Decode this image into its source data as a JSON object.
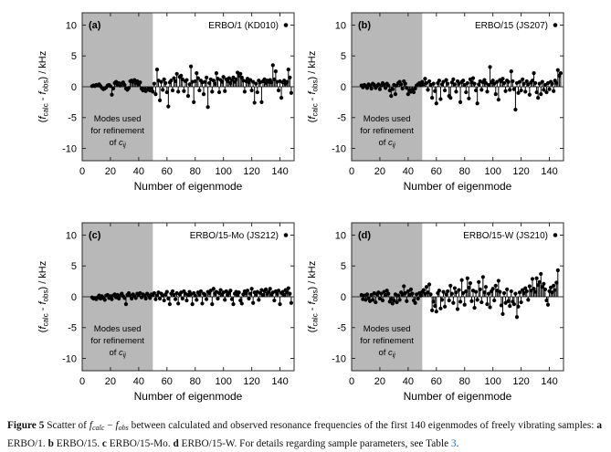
{
  "caption": {
    "link_color": "#2e6db4",
    "segments": [
      {
        "t": "Figure 5",
        "b": 1
      },
      {
        "t": "  Scatter of "
      },
      {
        "t": "f",
        "i": 1
      },
      {
        "t": "calc",
        "i": 1,
        "sub": 1
      },
      {
        "t": " − "
      },
      {
        "t": "f",
        "i": 1
      },
      {
        "t": "obs",
        "i": 1,
        "sub": 1
      },
      {
        "t": " between calculated and observed resonance frequencies of the first 140 eigenmodes of freely vibrating samples: "
      },
      {
        "t": "a",
        "b": 1
      },
      {
        "t": " ERBO/1. "
      },
      {
        "t": "b",
        "b": 1
      },
      {
        "t": " ERBO/15. "
      },
      {
        "t": "c",
        "b": 1
      },
      {
        "t": " ERBO/15-Mo. "
      },
      {
        "t": "d",
        "b": 1
      },
      {
        "t": " ERBO/15-W. For details regarding sample parameters, see Table "
      },
      {
        "t": "3",
        "link": 1
      },
      {
        "t": "."
      }
    ]
  },
  "chart_data": {
    "type": "stem-scatter",
    "common": {
      "xlabel": "Number of eigenmode",
      "ylabel_parts": [
        {
          "t": "("
        },
        {
          "t": "f",
          "i": 1
        },
        {
          "t": "calc",
          "sub": 1
        },
        {
          "t": " - "
        },
        {
          "t": "f",
          "i": 1
        },
        {
          "t": "obs",
          "sub": 1
        },
        {
          "t": ") / kHz"
        }
      ],
      "xlim": [
        0,
        150
      ],
      "ylim": [
        -12,
        12
      ],
      "xticks": [
        0,
        20,
        40,
        60,
        80,
        100,
        120,
        140
      ],
      "yticks": [
        -10,
        -5,
        0,
        5,
        10
      ],
      "grid": false,
      "marker_color": "#000000",
      "frame_color": "#2a2a2a",
      "shaded_region": {
        "x0": 0,
        "x1": 50,
        "color": "#b8b8b8",
        "label_lines": [
          "Modes used",
          "for refinement"
        ],
        "label_last_prefix": "of ",
        "label_cij_base": "c",
        "label_cij_sub": "ij"
      }
    },
    "panels": [
      {
        "label": "(a)",
        "legend": "ERBO/1 (KD010)",
        "x_start": 7,
        "y": [
          0.1,
          0.2,
          0.1,
          0.3,
          0.2,
          0.4,
          0.1,
          -0.2,
          -0.4,
          -0.3,
          -0.1,
          0.2,
          0.3,
          0.1,
          -1.3,
          -0.3,
          0.6,
          0.8,
          0.4,
          0.6,
          0.2,
          0.5,
          0.7,
          0.3,
          -0.3,
          -0.5,
          -0.2,
          0.9,
          1.0,
          0.8,
          1.1,
          0.6,
          0.9,
          0.4,
          0.7,
          -0.3,
          -0.6,
          -0.4,
          -0.7,
          -0.5,
          -0.3,
          -0.6,
          -0.4,
          -0.8,
          0.5,
          -1.2,
          2.8,
          1.0,
          -2.2,
          0.8,
          -0.5,
          1.2,
          0.6,
          -0.9,
          -3.2,
          0.7,
          1.0,
          -0.6,
          1.4,
          0.9,
          2.1,
          -0.8,
          1.6,
          1.8,
          1.2,
          -0.7,
          0.9,
          1.1,
          -1.5,
          0.4,
          3.3,
          0.8,
          -2.5,
          0.9,
          2.2,
          1.4,
          -0.6,
          1.0,
          0.7,
          -1.2,
          0.8,
          1.5,
          -3.3,
          0.6,
          1.2,
          -0.8,
          1.0,
          0.5,
          2.2,
          1.3,
          -0.9,
          1.1,
          0.8,
          1.6,
          -0.7,
          1.2,
          0.9,
          1.4,
          0.6,
          1.1,
          1.5,
          0.8,
          1.2,
          2.3,
          1.8,
          2.1,
          1.5,
          1.0,
          -0.8,
          0.9,
          1.3,
          0.7,
          1.1,
          -0.6,
          0.8,
          -2.6,
          0.5,
          -0.9,
          1.0,
          0.7,
          -2.5,
          0.9,
          1.2,
          0.6,
          1.0,
          0.8,
          1.1,
          0.7,
          3.5,
          1.2,
          2.5,
          0.8,
          -0.6,
          0.9,
          -1.8,
          0.7,
          1.0,
          0.5,
          0.8,
          2.8,
          1.5,
          -1.0
        ]
      },
      {
        "label": "(b)",
        "legend": "ERBO/15 (JS207)",
        "x_start": 7,
        "y": [
          0.2,
          -0.1,
          0.3,
          0.1,
          -0.2,
          0.4,
          0.2,
          -0.3,
          0.5,
          0.3,
          -0.2,
          0.1,
          0.4,
          -0.4,
          0.2,
          0.6,
          0.3,
          -0.2,
          0.5,
          0.2,
          -0.6,
          -1.5,
          -0.4,
          0.3,
          -1.2,
          0.2,
          0.6,
          0.8,
          0.4,
          -0.3,
          0.9,
          0.5,
          -0.2,
          -1.2,
          -0.6,
          -0.8,
          -0.5,
          -0.9,
          -0.3,
          0.2,
          0.4,
          0.6,
          0.3,
          0.8,
          0.4,
          1.3,
          0.6,
          -0.5,
          0.9,
          0.3,
          -1.8,
          0.5,
          -0.7,
          -2.7,
          0.6,
          1.0,
          -2.0,
          0.4,
          0.8,
          -0.6,
          1.1,
          0.5,
          -1.5,
          -1.8,
          0.7,
          1.2,
          0.4,
          -0.8,
          0.9,
          0.5,
          -2.5,
          0.8,
          1.0,
          0.3,
          -0.9,
          0.6,
          -1.9,
          1.2,
          0.7,
          1.4,
          0.5,
          -0.6,
          -2.7,
          0.4,
          0.9,
          -0.5,
          0.7,
          1.1,
          0.6,
          -0.8,
          0.3,
          3.2,
          0.7,
          1.0,
          0.5,
          -1.2,
          0.8,
          -2.1,
          1.1,
          0.9,
          1.3,
          0.6,
          -0.7,
          1.0,
          0.8,
          -0.5,
          2.5,
          0.9,
          -0.4,
          -3.7,
          0.6,
          -1.0,
          0.8,
          -0.6,
          1.2,
          0.5,
          -0.8,
          0.9,
          0.4,
          -1.3,
          0.7,
          1.0,
          2.2,
          0.6,
          -0.9,
          -1.8,
          0.5,
          -1.2,
          0.8,
          -0.5,
          0.3,
          -0.9,
          0.6,
          -0.4,
          0.8,
          0.5,
          -0.7,
          1.0,
          0.6,
          2.7,
          1.8,
          2.2
        ]
      },
      {
        "label": "(c)",
        "legend": "ERBO/15-Mo (JS212)",
        "x_start": 7,
        "y": [
          -0.1,
          -0.3,
          -0.2,
          -0.4,
          -0.1,
          0.2,
          -0.3,
          0.1,
          -0.2,
          -0.5,
          0.2,
          0.3,
          -0.2,
          0.1,
          -0.4,
          0.2,
          0.4,
          -0.1,
          0.3,
          -0.3,
          0.2,
          0.5,
          0.1,
          -0.2,
          -1.2,
          0.3,
          0.6,
          0.2,
          -0.3,
          0.4,
          0.1,
          -0.2,
          0.5,
          0.3,
          0.6,
          -0.1,
          0.4,
          0.2,
          -0.3,
          0.5,
          0.2,
          -0.2,
          0.4,
          0.3,
          0.6,
          -0.4,
          0.2,
          0.7,
          -0.3,
          0.5,
          0.2,
          -0.6,
          0.4,
          0.8,
          -0.3,
          -1.2,
          0.5,
          0.9,
          0.3,
          -0.4,
          0.6,
          -1.1,
          0.4,
          0.7,
          -0.3,
          0.9,
          0.5,
          -0.6,
          0.3,
          0.8,
          0.4,
          -1.2,
          0.6,
          0.2,
          -0.5,
          0.7,
          0.4,
          0.9,
          -1.1,
          0.5,
          0.3,
          -0.4,
          0.8,
          0.6,
          1.0,
          -1.2,
          1.3,
          0.5,
          0.8,
          -0.3,
          0.6,
          1.1,
          0.4,
          0.7,
          -0.5,
          0.9,
          0.3,
          0.6,
          1.0,
          -0.4,
          -1.2,
          0.5,
          0.8,
          0.3,
          0.7,
          -0.6,
          -1.1,
          0.4,
          0.9,
          0.6,
          1.0,
          -0.3,
          0.5,
          1.3,
          -1.0,
          0.7,
          0.4,
          0.8,
          -0.5,
          0.6,
          1.1,
          0.3,
          0.9,
          1.2,
          0.5,
          0.8,
          1.3,
          0.4,
          0.7,
          -0.6,
          0.9,
          0.5,
          1.0,
          -1.2,
          0.6,
          0.8,
          0.3,
          1.1,
          0.7,
          1.4,
          0.5,
          -1.0
        ]
      },
      {
        "label": "(d)",
        "legend": "ERBO/15-W (JS210)",
        "x_start": 7,
        "y": [
          0.3,
          -0.4,
          0.2,
          -0.5,
          0.4,
          -0.2,
          -0.7,
          0.3,
          -0.5,
          0.6,
          -0.9,
          0.4,
          0.7,
          -0.3,
          0.5,
          -0.6,
          0.8,
          0.3,
          1.0,
          0.5,
          -0.8,
          -0.4,
          -1.1,
          -0.6,
          0.4,
          -0.9,
          0.2,
          -0.5,
          0.7,
          0.4,
          1.7,
          0.6,
          -0.7,
          0.9,
          0.3,
          1.2,
          0.5,
          -0.6,
          -1.0,
          0.4,
          -0.3,
          0.6,
          0.2,
          0.8,
          1.1,
          0.5,
          1.6,
          0.7,
          2.0,
          0.4,
          -2.2,
          -0.8,
          -1.5,
          -2.4,
          0.6,
          1.0,
          -1.9,
          -0.5,
          0.8,
          -1.6,
          0.4,
          0.9,
          -0.6,
          1.8,
          0.5,
          -1.0,
          1.4,
          0.7,
          -2.0,
          1.1,
          -0.8,
          2.7,
          0.6,
          -1.3,
          0.9,
          3.0,
          1.5,
          2.2,
          -0.7,
          1.0,
          -1.8,
          0.8,
          -0.5,
          2.4,
          1.2,
          -0.9,
          3.2,
          0.7,
          1.6,
          -1.2,
          0.5,
          -1.7,
          0.9,
          1.3,
          -0.6,
          1.8,
          1.0,
          2.6,
          0.8,
          -1.4,
          -2.8,
          0.6,
          -1.0,
          1.2,
          -0.7,
          -1.5,
          0.9,
          -0.8,
          -1.2,
          0.5,
          -3.3,
          -1.6,
          0.7,
          -0.9,
          1.1,
          0.6,
          1.4,
          0.9,
          -0.5,
          1.7,
          1.0,
          2.9,
          1.3,
          0.8,
          3.0,
          1.9,
          2.4,
          3.7,
          1.6,
          2.1,
          1.2,
          -0.6,
          -1.3,
          0.9,
          1.5,
          0.7,
          1.8,
          1.1,
          2.3,
          4.3
        ]
      }
    ]
  }
}
